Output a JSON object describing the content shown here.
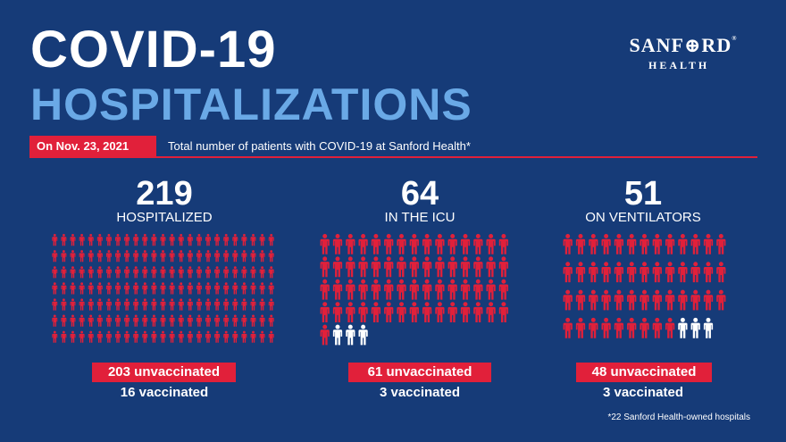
{
  "header": {
    "title_line1": "COVID-19",
    "title_line2": "HOSPITALIZATIONS",
    "logo_brand": "SANF⊕RD",
    "logo_registered": "®",
    "logo_sub": "HEALTH",
    "date": "On Nov. 23, 2021",
    "caption": "Total number of patients with COVID-19 at Sanford Health*"
  },
  "colors": {
    "background": "#163b78",
    "accent_red": "#e1203a",
    "title_blue": "#6aa9e6",
    "vaccinated_white": "#ffffff"
  },
  "icon_name": "person-icon",
  "stats": [
    {
      "id": "hospitalized",
      "number": "219",
      "label": "HOSPITALIZED",
      "total": 219,
      "unvaccinated": 203,
      "vaccinated": 16,
      "unvaccinated_label": "203 unvaccinated",
      "vaccinated_label": "16 vaccinated"
    },
    {
      "id": "icu",
      "number": "64",
      "label": "IN THE ICU",
      "total": 64,
      "unvaccinated": 61,
      "vaccinated": 3,
      "unvaccinated_label": "61 unvaccinated",
      "vaccinated_label": "3 vaccinated"
    },
    {
      "id": "ventilators",
      "number": "51",
      "label": "ON VENTILATORS",
      "total": 51,
      "unvaccinated": 48,
      "vaccinated": 3,
      "unvaccinated_label": "48 unvaccinated",
      "vaccinated_label": "3 vaccinated"
    }
  ],
  "footnote": "*22 Sanford Health-owned hospitals"
}
